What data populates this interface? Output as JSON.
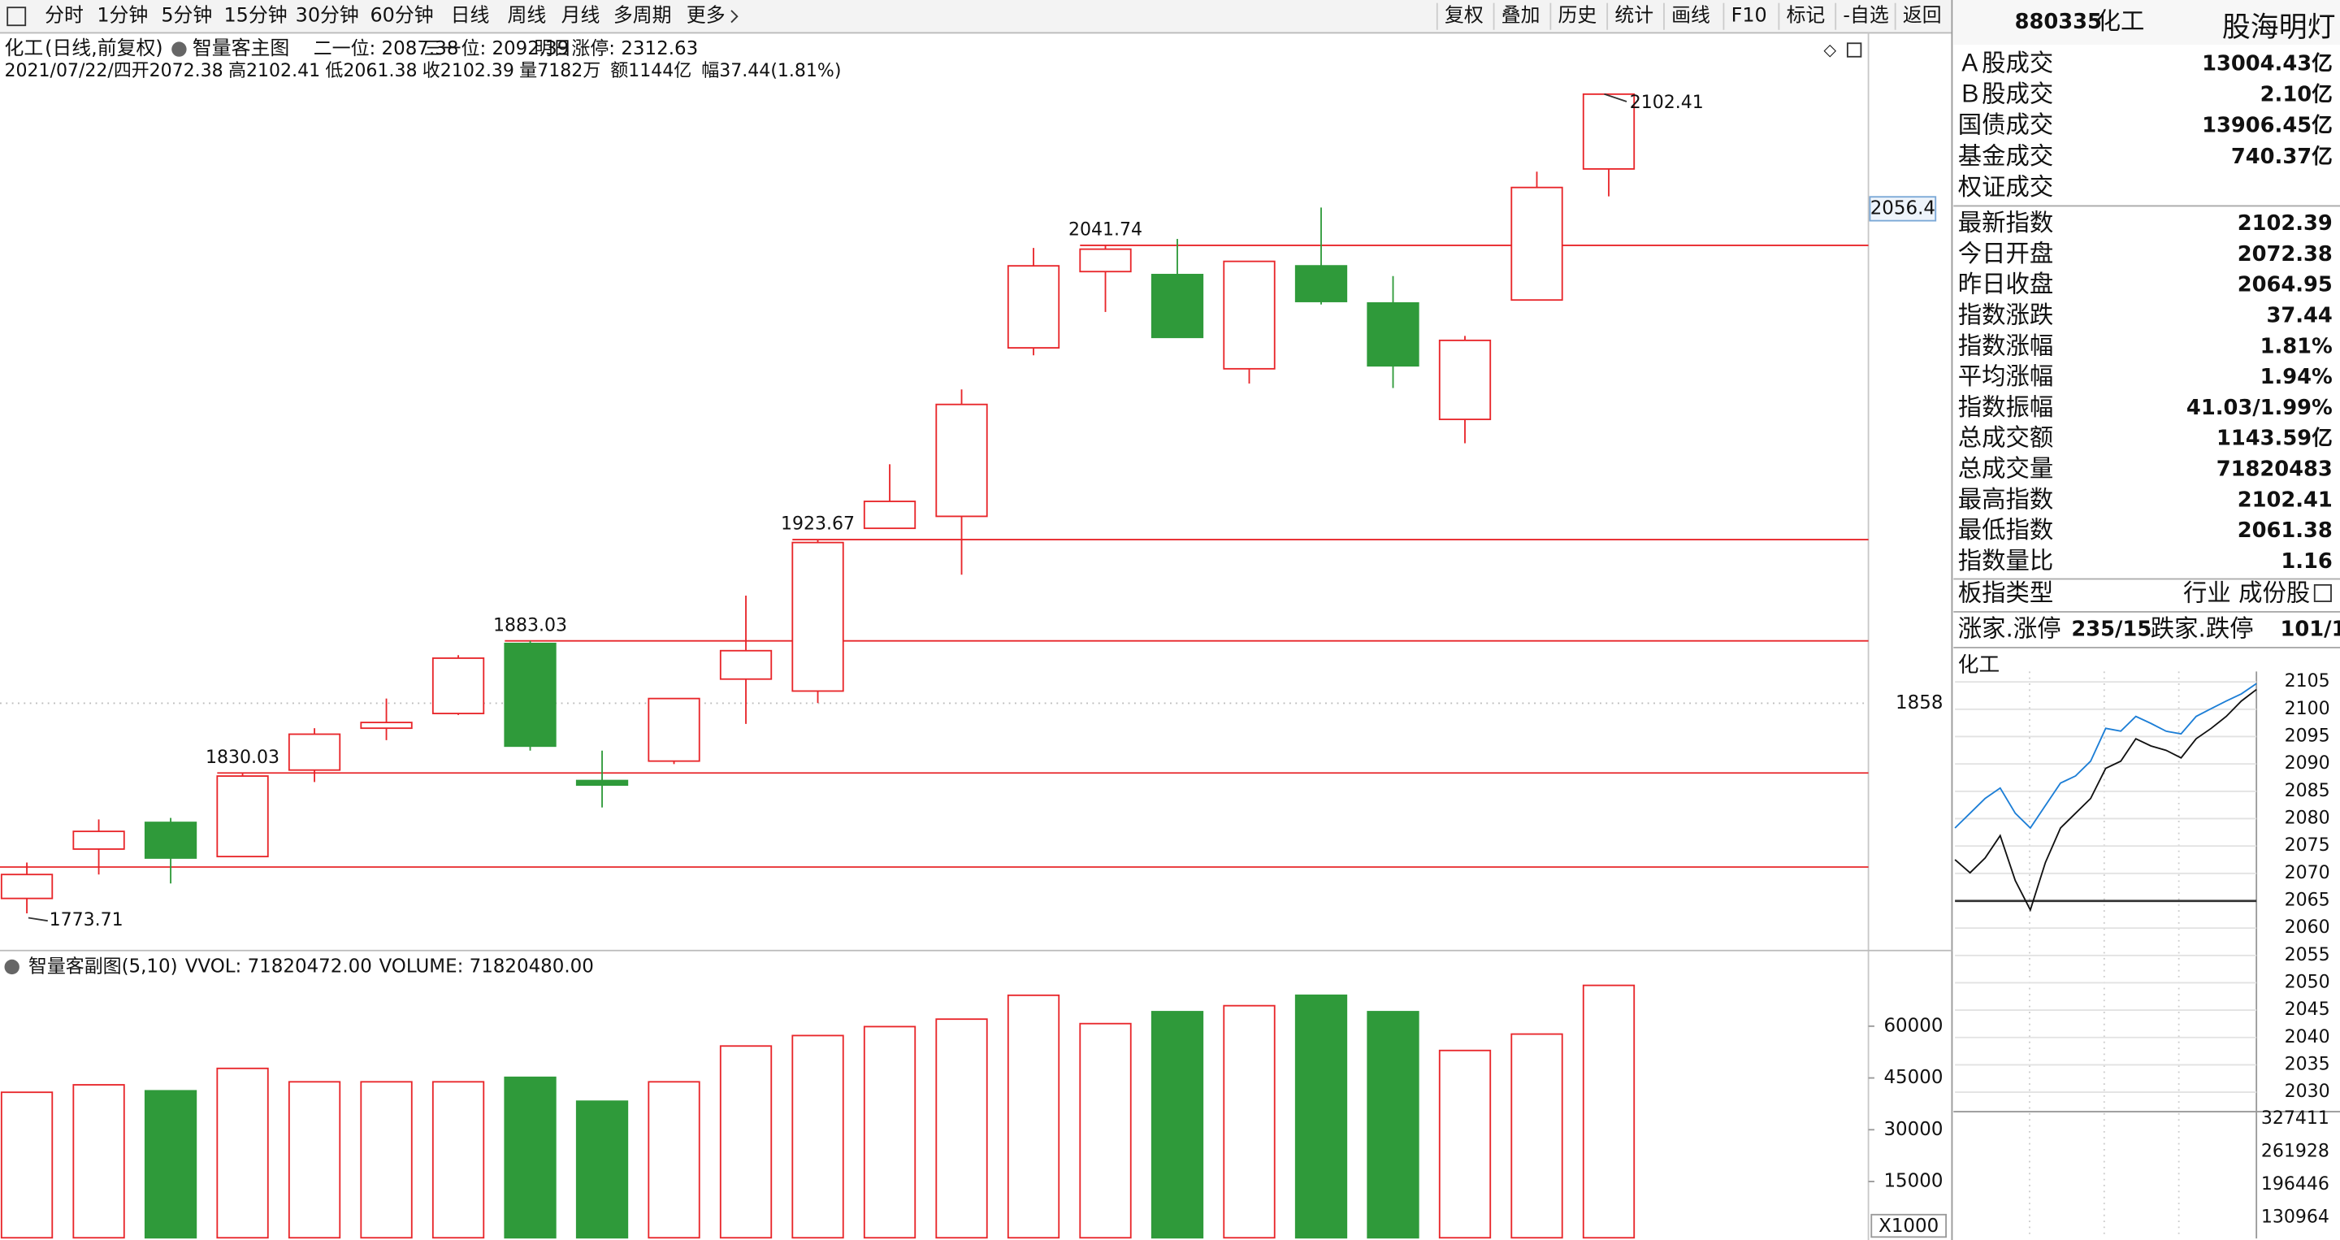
{
  "toolbar": {
    "periods": [
      "分时",
      "1分钟",
      "5分钟",
      "15分钟",
      "30分钟",
      "60分钟",
      "日线",
      "周线",
      "月线",
      "多周期",
      "更多"
    ],
    "tools": [
      "复权",
      "叠加",
      "历史",
      "统计",
      "画线",
      "F10",
      "标记",
      "-自选",
      "返回"
    ]
  },
  "chart_header": {
    "symbol": "化工",
    "mode": "(日线,前复权)",
    "indicator": "智量客主图",
    "levels": [
      {
        "text": "二一位: 2087.38",
        "color": "#e02020"
      },
      {
        "text": "三一位: 2092.39",
        "color": "#e02020"
      },
      {
        "text": "明日涨停: 2312.63",
        "color": "#e02020"
      }
    ],
    "quote": [
      {
        "text": "2021/07/22/四",
        "color": "#222"
      },
      {
        "text": "开2072.38",
        "color": "#e02020"
      },
      {
        "text": "高2102.41",
        "color": "#e02020"
      },
      {
        "text": "低2061.38",
        "color": "#1a9a2a"
      },
      {
        "text": "收2102.39",
        "color": "#e02020"
      },
      {
        "text": "量7182万",
        "color": "#222"
      },
      {
        "text": "额1144亿",
        "color": "#222"
      },
      {
        "text": "幅37.44(1.81%)",
        "color": "#e02020"
      }
    ]
  },
  "volume_header": {
    "indicator": "智量客副图(5,10)",
    "items": [
      {
        "text": "VVOL: 71820472.00",
        "color": "#222"
      },
      {
        "text": "VOLUME: 71820480.00",
        "color": "#1c6fc4"
      }
    ]
  },
  "chart_data": [
    {
      "type": "candlestick",
      "categories": [
        null,
        null,
        null,
        null,
        null,
        null,
        null,
        null,
        null,
        null,
        null,
        null,
        null,
        null,
        null,
        null,
        null,
        null,
        null,
        null,
        null,
        null,
        null
      ],
      "open": [
        1779.7,
        1799.5,
        1810.2,
        1796.5,
        1831.2,
        1848.0,
        1853.9,
        1882.0,
        1827.0,
        1834.8,
        1867.7,
        1862.9,
        1928.2,
        1933.0,
        2000.6,
        2031.2,
        2030.0,
        1992.2,
        2033.5,
        2018.6,
        1971.9,
        2019.8,
        2072.38
      ],
      "high": [
        1794.1,
        1811.4,
        1812.0,
        1830.03,
        1848.0,
        1859.9,
        1877.3,
        1883.03,
        1839.0,
        1859.9,
        1901.2,
        1923.67,
        1953.9,
        1983.9,
        2040.7,
        2041.74,
        2044.3,
        2035.3,
        2056.9,
        2029.4,
        2005.4,
        2071.3,
        2102.41
      ],
      "low": [
        1773.71,
        1789.3,
        1785.7,
        1796.5,
        1826.4,
        1843.2,
        1853.3,
        1839.0,
        1816.2,
        1833.6,
        1849.7,
        1858.1,
        1928.2,
        1909.6,
        1997.6,
        2015.0,
        2004.8,
        1986.3,
        2018.0,
        1984.5,
        1962.3,
        2019.8,
        2061.38
      ],
      "close": [
        1789.3,
        1806.6,
        1795.9,
        1828.8,
        1845.6,
        1850.3,
        1876.1,
        1840.8,
        1825.2,
        1859.9,
        1879.1,
        1922.5,
        1939.0,
        1977.9,
        2033.5,
        2040.2,
        2004.8,
        2035.3,
        2019.2,
        1993.4,
        2003.6,
        2064.95,
        2102.39
      ],
      "up_color": "#e8262a",
      "down_color": "#2f9a3a",
      "ylim": [
        1758.8,
        2124.6
      ],
      "yticks": [
        1858
      ],
      "cursor_value": 2056.4,
      "levels": [
        2041.74,
        1923.67,
        1883.03,
        1830.03,
        1792.3
      ],
      "labeled_highs": [
        3,
        7,
        11,
        15,
        22
      ],
      "labeled_lows": [
        0
      ]
    },
    {
      "type": "bar",
      "axis_label": "X1000",
      "values": [
        40850,
        43010,
        41280,
        47770,
        43880,
        43880,
        43880,
        45180,
        38260,
        43880,
        54250,
        57280,
        59870,
        62040,
        68950,
        60740,
        64200,
        65930,
        68950,
        64200,
        52960,
        57710,
        71820.48
      ],
      "ylim": [
        0,
        73270
      ],
      "yticks": [
        15000,
        30000,
        45000,
        60000
      ]
    },
    {
      "type": "line",
      "series": [
        {
          "color": "#111111",
          "values": [
            2072.5,
            2070.1,
            2072.8,
            2076.9,
            2068.7,
            2063.3,
            2072.0,
            2078.3,
            2081.0,
            2083.7,
            2089.2,
            2090.5,
            2094.6,
            2093.3,
            2092.5,
            2091.1,
            2094.6,
            2096.5,
            2098.7,
            2101.5,
            2103.6
          ]
        },
        {
          "color": "#1c7ed6",
          "values": [
            2078.3,
            2081.0,
            2083.7,
            2085.6,
            2081.0,
            2078.3,
            2082.4,
            2086.5,
            2087.8,
            2090.5,
            2096.5,
            2096.0,
            2098.7,
            2097.4,
            2096.0,
            2095.5,
            2098.7,
            2100.1,
            2101.5,
            2102.8,
            2104.7
          ]
        }
      ],
      "baseline": 2064.95,
      "ylim": [
        2027.8,
        2106.9
      ],
      "yticks": [
        2105,
        2100,
        2095,
        2090,
        2085,
        2080,
        2075,
        2070,
        2065,
        2060,
        2055,
        2050,
        2045,
        2040,
        2035,
        2030
      ],
      "vol_ylim": [
        89289,
        342294
      ],
      "vol_ticks": [
        327411,
        261928,
        196446,
        130964
      ]
    }
  ],
  "side_panel": {
    "code": "880335",
    "name": "化工",
    "watermark": "股海明灯",
    "rows": [
      {
        "label": "Ａ股成交",
        "value": "13004.43亿",
        "color": "#111"
      },
      {
        "label": "Ｂ股成交",
        "value": "2.10亿",
        "color": "#111"
      },
      {
        "label": "国债成交",
        "value": "13906.45亿",
        "color": "#111"
      },
      {
        "label": "基金成交",
        "value": "740.37亿",
        "color": "#111"
      },
      {
        "label": "权证成交"
      },
      {
        "label": "最新指数",
        "value": "2102.39",
        "color": "#e02020"
      },
      {
        "label": "今日开盘",
        "value": "2072.38",
        "color": "#e02020"
      },
      {
        "label": "昨日收盘",
        "value": "2064.95",
        "color": "#111"
      },
      {
        "label": "指数涨跌",
        "value": "37.44",
        "color": "#e02020"
      },
      {
        "label": "指数涨幅",
        "value": "1.81%",
        "color": "#e02020"
      },
      {
        "label": "平均涨幅",
        "value": "1.94%",
        "color": "#e02020"
      },
      {
        "label": "指数振幅",
        "value": "41.03/1.99%",
        "color": "#111"
      },
      {
        "label": "总成交额",
        "value": "1143.59亿",
        "color": "#111"
      },
      {
        "label": "总成交量",
        "value": "71820483",
        "color": "#111"
      },
      {
        "label": "最高指数",
        "value": "2102.41",
        "color": "#e02020"
      },
      {
        "label": "最低指数",
        "value": "2061.38",
        "color": "#1a9a2a"
      },
      {
        "label": "指数量比",
        "value": "1.16",
        "color": "#e02020"
      }
    ],
    "type_label": "板指类型",
    "type_value": "行业 成份股",
    "breadth": [
      {
        "text": "涨家.涨停",
        "color": "#111"
      },
      {
        "text": "235/15",
        "color": "#e02020"
      },
      {
        "text": "跌家.跌停",
        "color": "#111"
      },
      {
        "text": "101/1",
        "color": "#1a9a2a"
      }
    ],
    "mini_title": "化工"
  }
}
